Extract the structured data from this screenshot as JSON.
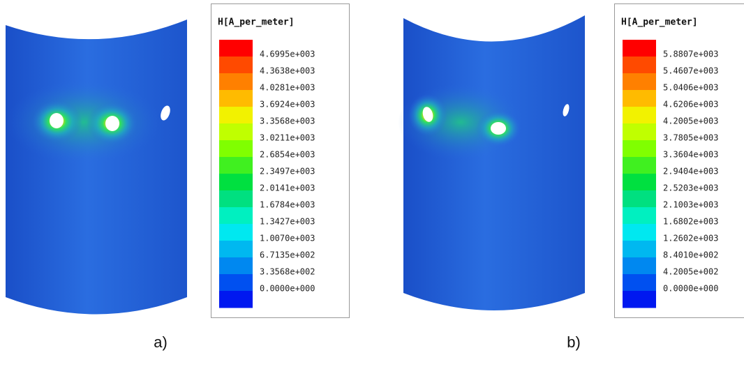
{
  "panels": [
    {
      "label": "a)",
      "legend": {
        "title": "H[A_per_meter]",
        "labels": [
          "4.6995e+003",
          "4.3638e+003",
          "4.0281e+003",
          "3.6924e+003",
          "3.3568e+003",
          "3.0211e+003",
          "2.6854e+003",
          "2.3497e+003",
          "2.0141e+003",
          "1.6784e+003",
          "1.3427e+003",
          "1.0070e+003",
          "6.7135e+002",
          "3.3568e+002",
          "0.0000e+000"
        ]
      }
    },
    {
      "label": "b)",
      "legend": {
        "title": "H[A_per_meter]",
        "labels": [
          "5.8807e+003",
          "5.4607e+003",
          "5.0406e+003",
          "4.6206e+003",
          "4.2005e+003",
          "3.7805e+003",
          "3.3604e+003",
          "2.9404e+003",
          "2.5203e+003",
          "2.1003e+003",
          "1.6802e+003",
          "1.2602e+003",
          "8.4010e+002",
          "4.2005e+002",
          "0.0000e+000"
        ]
      }
    }
  ]
}
